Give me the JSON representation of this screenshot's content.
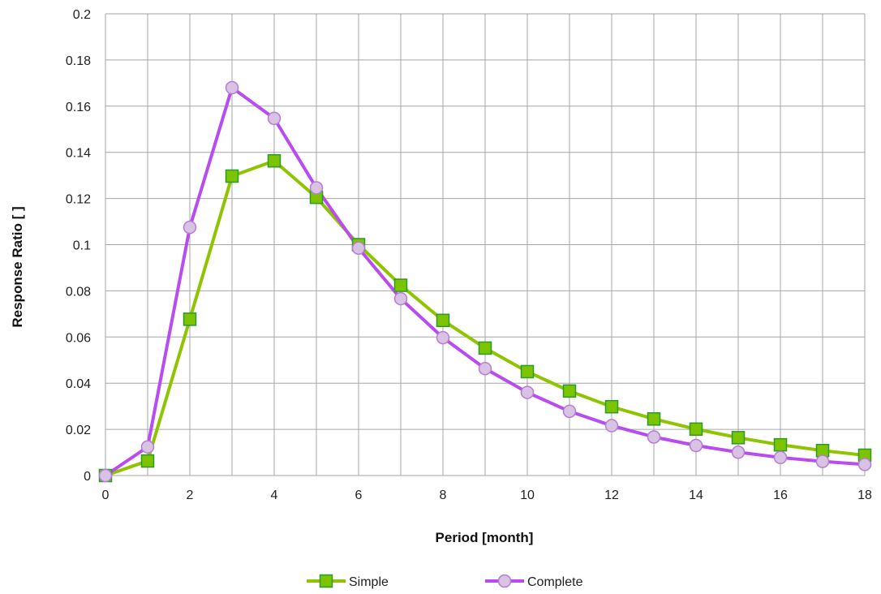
{
  "chart_data": {
    "type": "line",
    "title": "",
    "xlabel": "Period [month]",
    "ylabel": "Response Ratio  [  ]",
    "xlim": [
      0,
      18
    ],
    "ylim": [
      0,
      0.2
    ],
    "xticks": [
      0,
      2,
      4,
      6,
      8,
      10,
      12,
      14,
      16,
      18
    ],
    "yticks": [
      0,
      0.02,
      0.04,
      0.06,
      0.08,
      0.1,
      0.12,
      0.14,
      0.16,
      0.18,
      0.2
    ],
    "xtick_labels": [
      "0",
      "2",
      "4",
      "6",
      "8",
      "10",
      "12",
      "14",
      "16",
      "18"
    ],
    "ytick_labels": [
      "0",
      "0.02",
      "0.04",
      "0.06",
      "0.08",
      "0.1",
      "0.12",
      "0.14",
      "0.16",
      "0.18",
      "0.2"
    ],
    "grid": true,
    "legend_position": "bottom",
    "x": [
      0,
      1,
      2,
      3,
      4,
      5,
      6,
      7,
      8,
      9,
      10,
      11,
      12,
      13,
      14,
      15,
      16,
      17,
      18
    ],
    "series": [
      {
        "name": "Simple",
        "color": "#8ec400",
        "marker": "square",
        "marker_fill": "#7cc400",
        "marker_stroke": "#2a9a2a",
        "values": [
          0.0,
          0.0063,
          0.0677,
          0.1297,
          0.1363,
          0.1205,
          0.1,
          0.0824,
          0.0672,
          0.0552,
          0.045,
          0.0366,
          0.0298,
          0.0245,
          0.0201,
          0.0164,
          0.0133,
          0.0108,
          0.0088
        ]
      },
      {
        "name": "Complete",
        "color": "#b94cf0",
        "marker": "circle",
        "marker_fill": "#d9c3e3",
        "marker_stroke": "#b77bd6",
        "values": [
          0.0,
          0.0124,
          0.1075,
          0.168,
          0.1547,
          0.1246,
          0.0985,
          0.0766,
          0.0597,
          0.0463,
          0.036,
          0.0278,
          0.0216,
          0.0167,
          0.013,
          0.0101,
          0.0078,
          0.0061,
          0.0048
        ]
      }
    ]
  }
}
